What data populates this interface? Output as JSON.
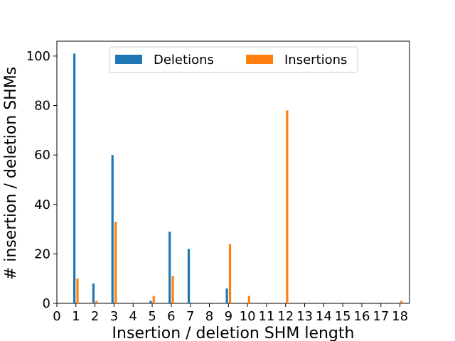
{
  "chart_data": {
    "type": "bar",
    "x": [
      0,
      1,
      2,
      3,
      4,
      5,
      6,
      7,
      8,
      9,
      10,
      11,
      12,
      13,
      14,
      15,
      16,
      17,
      18
    ],
    "series": [
      {
        "name": "Deletions",
        "color": "#1f77b4",
        "points": [
          [
            1,
            101
          ],
          [
            2,
            8
          ],
          [
            3,
            60
          ],
          [
            5,
            1
          ],
          [
            6,
            29
          ],
          [
            7,
            22
          ],
          [
            9,
            6
          ]
        ]
      },
      {
        "name": "Insertions",
        "color": "#ff7f0e",
        "points": [
          [
            1,
            10
          ],
          [
            2,
            1
          ],
          [
            3,
            33
          ],
          [
            5,
            3
          ],
          [
            6,
            11
          ],
          [
            9,
            24
          ],
          [
            10,
            3
          ],
          [
            12,
            78
          ],
          [
            18,
            1
          ]
        ]
      }
    ],
    "xlabel": "Insertion / deletion SHM length",
    "ylabel": "# insertion / deletion SHMs",
    "xlim": [
      0,
      18.5
    ],
    "ylim": [
      0,
      106
    ],
    "yticks": [
      0,
      20,
      40,
      60,
      80,
      100
    ],
    "legend_position": "upper-center",
    "grid": false
  }
}
